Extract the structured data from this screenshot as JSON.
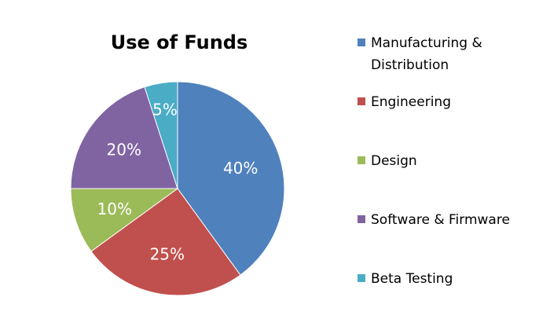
{
  "chart_data": {
    "type": "pie",
    "title": "Use of Funds",
    "slices": [
      {
        "label": [
          "Manufacturing &",
          "Distribution"
        ],
        "value": 40,
        "value_label": "40%",
        "color": "#4f81bd"
      },
      {
        "label": [
          "Engineering"
        ],
        "value": 25,
        "value_label": "25%",
        "color": "#c0504d"
      },
      {
        "label": [
          "Design"
        ],
        "value": 10,
        "value_label": "10%",
        "color": "#9bbb59"
      },
      {
        "label": [
          "Software & Firmware"
        ],
        "value": 20,
        "value_label": "20%",
        "color": "#8064a2"
      },
      {
        "label": [
          "Beta Testing"
        ],
        "value": 5,
        "value_label": "5%",
        "color": "#4bacc6"
      }
    ],
    "start_angle": "12 o'clock",
    "direction": "clockwise",
    "legend_position": "right",
    "data_labels": "inside"
  }
}
